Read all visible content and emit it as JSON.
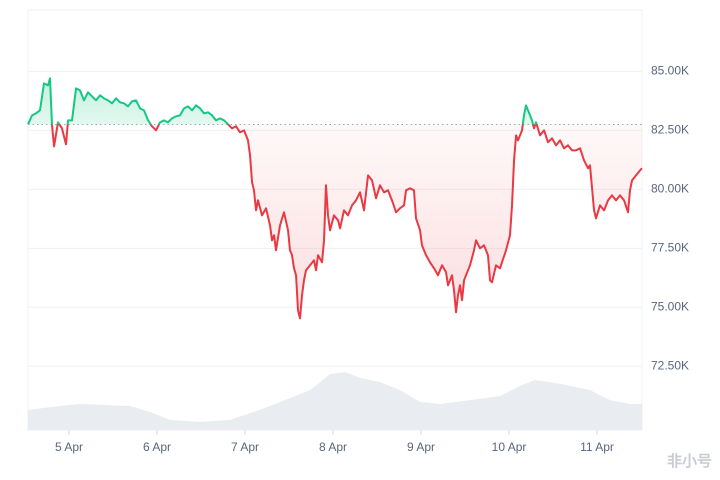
{
  "chart_data": {
    "type": "line",
    "baseline": 82750,
    "up_color": "#16c784",
    "down_color": "#ea3943",
    "grid": true,
    "watermark": "非小号",
    "xlim": [
      4.534,
      11.511
    ],
    "xticks": [
      {
        "value": 5,
        "label": "5 Apr"
      },
      {
        "value": 6,
        "label": "6 Apr"
      },
      {
        "value": 7,
        "label": "7 Apr"
      },
      {
        "value": 8,
        "label": "8 Apr"
      },
      {
        "value": 9,
        "label": "9 Apr"
      },
      {
        "value": 10,
        "label": "10 Apr"
      },
      {
        "value": 11,
        "label": "11 Apr"
      }
    ],
    "ylim": [
      69800,
      87600
    ],
    "yticks": [
      {
        "value": 72500,
        "label": "72.50K"
      },
      {
        "value": 75000,
        "label": "75.00K"
      },
      {
        "value": 77500,
        "label": "77.50K"
      },
      {
        "value": 80000,
        "label": "80.00K"
      },
      {
        "value": 82500,
        "label": "82.50K"
      },
      {
        "value": 85000,
        "label": "85.00K"
      }
    ],
    "y2lim": [
      0,
      100
    ],
    "x": [
      4.534,
      4.58,
      4.625,
      4.67,
      4.716,
      4.761,
      4.784,
      4.807,
      4.83,
      4.875,
      4.92,
      4.966,
      4.989,
      5.034,
      5.08,
      5.125,
      5.17,
      5.216,
      5.261,
      5.307,
      5.352,
      5.398,
      5.443,
      5.489,
      5.534,
      5.58,
      5.625,
      5.67,
      5.716,
      5.761,
      5.807,
      5.852,
      5.898,
      5.943,
      5.989,
      6.034,
      6.08,
      6.125,
      6.17,
      6.216,
      6.261,
      6.307,
      6.352,
      6.398,
      6.443,
      6.489,
      6.534,
      6.58,
      6.625,
      6.67,
      6.716,
      6.761,
      6.807,
      6.852,
      6.898,
      6.943,
      6.989,
      7.034,
      7.057,
      7.08,
      7.102,
      7.125,
      7.148,
      7.193,
      7.239,
      7.284,
      7.307,
      7.33,
      7.352,
      7.398,
      7.443,
      7.489,
      7.511,
      7.534,
      7.557,
      7.58,
      7.602,
      7.625,
      7.648,
      7.67,
      7.693,
      7.739,
      7.784,
      7.807,
      7.83,
      7.875,
      7.898,
      7.92,
      7.943,
      7.966,
      8.011,
      8.057,
      8.08,
      8.125,
      8.17,
      8.216,
      8.261,
      8.307,
      8.352,
      8.398,
      8.443,
      8.489,
      8.534,
      8.58,
      8.625,
      8.67,
      8.716,
      8.761,
      8.807,
      8.83,
      8.875,
      8.92,
      8.943,
      8.989,
      9.011,
      9.057,
      9.102,
      9.148,
      9.193,
      9.239,
      9.284,
      9.307,
      9.352,
      9.375,
      9.398,
      9.42,
      9.443,
      9.466,
      9.489,
      9.511,
      9.557,
      9.602,
      9.625,
      9.67,
      9.716,
      9.761,
      9.784,
      9.807,
      9.852,
      9.898,
      9.92,
      9.966,
      10.011,
      10.034,
      10.057,
      10.08,
      10.102,
      10.148,
      10.17,
      10.193,
      10.216,
      10.239,
      10.261,
      10.284,
      10.307,
      10.352,
      10.398,
      10.443,
      10.489,
      10.534,
      10.58,
      10.625,
      10.67,
      10.716,
      10.761,
      10.807,
      10.852,
      10.898,
      10.92,
      10.966,
      10.989,
      11.034,
      11.08,
      11.125,
      11.17,
      11.216,
      11.261,
      11.307,
      11.352,
      11.375,
      11.398,
      11.443,
      11.489,
      11.511
    ],
    "values": [
      82754,
      83135,
      83220,
      83347,
      84491,
      84407,
      84703,
      82712,
      81822,
      82839,
      82585,
      81907,
      82924,
      82924,
      84280,
      84195,
      83771,
      84110,
      83941,
      83771,
      83983,
      83856,
      83771,
      83644,
      83856,
      83686,
      83644,
      83517,
      83729,
      83771,
      83432,
      83347,
      82924,
      82670,
      82500,
      82839,
      82924,
      82839,
      83008,
      83093,
      83135,
      83432,
      83517,
      83347,
      83559,
      83432,
      83220,
      83263,
      83135,
      82924,
      83008,
      82924,
      82754,
      82585,
      82670,
      82415,
      82500,
      82076,
      81441,
      80297,
      79958,
      79110,
      79534,
      78898,
      79195,
      78475,
      77839,
      78051,
      77416,
      78475,
      79026,
      78263,
      77416,
      77204,
      76653,
      76356,
      74873,
      74534,
      75509,
      76144,
      76568,
      76780,
      76992,
      76568,
      77204,
      76907,
      77839,
      80170,
      78898,
      78263,
      78898,
      78687,
      78348,
      79110,
      78898,
      79322,
      79534,
      79873,
      79110,
      80593,
      80381,
      79619,
      80170,
      79873,
      79958,
      79534,
      79026,
      79195,
      79322,
      79958,
      80042,
      79958,
      78771,
      78263,
      77627,
      77204,
      76907,
      76653,
      76356,
      76780,
      76484,
      75933,
      76356,
      75721,
      74788,
      75509,
      75933,
      75297,
      76144,
      76356,
      76780,
      77416,
      77839,
      77500,
      77627,
      77204,
      76144,
      76060,
      76780,
      76653,
      76907,
      77416,
      78051,
      79322,
      81229,
      82288,
      82076,
      82500,
      83135,
      83559,
      83347,
      83135,
      82924,
      82585,
      82839,
      82288,
      82500,
      81992,
      82161,
      81865,
      82076,
      81737,
      81865,
      81653,
      81653,
      81737,
      81229,
      80890,
      81017,
      79110,
      78771,
      79322,
      79110,
      79534,
      79746,
      79534,
      79746,
      79534,
      79026,
      79958,
      80381,
      80593,
      80805,
      80890
    ],
    "volume": {
      "axis": "y2",
      "color": "#e9ecf0",
      "x": [
        4.534,
        4.898,
        5.125,
        5.352,
        5.693,
        5.92,
        6.148,
        6.489,
        6.83,
        7.17,
        7.511,
        7.739,
        7.966,
        8.136,
        8.307,
        8.534,
        8.761,
        8.989,
        9.216,
        9.557,
        9.898,
        10.125,
        10.295,
        10.58,
        10.92,
        11.148,
        11.375,
        11.511
      ],
      "values": [
        4.8,
        5.7,
        6.2,
        6.0,
        5.7,
        4.3,
        2.4,
        1.9,
        2.4,
        4.8,
        7.6,
        9.5,
        13.3,
        13.8,
        12.4,
        11.4,
        9.5,
        6.7,
        6.2,
        7.1,
        8.1,
        10.5,
        11.9,
        11.0,
        9.5,
        7.1,
        6.2,
        6.2
      ]
    }
  }
}
